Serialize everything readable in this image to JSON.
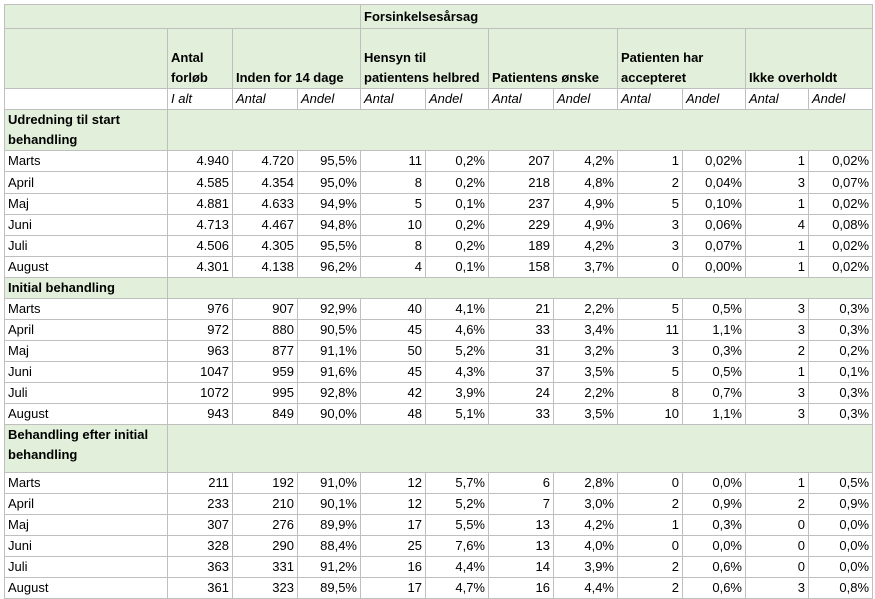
{
  "header": {
    "group_title": "Forsinkelsesårsag",
    "columns": [
      "Antal forløb",
      "Inden for 14 dage",
      "Hensyn til patientens helbred",
      "Patientens ønske",
      "Patienten har accepteret",
      "Ikke overholdt"
    ],
    "subheaders": [
      "I alt",
      "Antal",
      "Andel",
      "Antal",
      "Andel",
      "Antal",
      "Andel",
      "Antal",
      "Andel",
      "Antal",
      "Andel"
    ]
  },
  "sections": [
    {
      "title": "Udredning til start behandling",
      "rows": [
        [
          "Marts",
          "4.940",
          "4.720",
          "95,5%",
          "11",
          "0,2%",
          "207",
          "4,2%",
          "1",
          "0,02%",
          "1",
          "0,02%"
        ],
        [
          "April",
          "4.585",
          "4.354",
          "95,0%",
          "8",
          "0,2%",
          "218",
          "4,8%",
          "2",
          "0,04%",
          "3",
          "0,07%"
        ],
        [
          "Maj",
          "4.881",
          "4.633",
          "94,9%",
          "5",
          "0,1%",
          "237",
          "4,9%",
          "5",
          "0,10%",
          "1",
          "0,02%"
        ],
        [
          "Juni",
          "4.713",
          "4.467",
          "94,8%",
          "10",
          "0,2%",
          "229",
          "4,9%",
          "3",
          "0,06%",
          "4",
          "0,08%"
        ],
        [
          "Juli",
          "4.506",
          "4.305",
          "95,5%",
          "8",
          "0,2%",
          "189",
          "4,2%",
          "3",
          "0,07%",
          "1",
          "0,02%"
        ],
        [
          "August",
          "4.301",
          "4.138",
          "96,2%",
          "4",
          "0,1%",
          "158",
          "3,7%",
          "0",
          "0,00%",
          "1",
          "0,02%"
        ]
      ]
    },
    {
      "title": "Initial behandling",
      "rows": [
        [
          "Marts",
          "976",
          "907",
          "92,9%",
          "40",
          "4,1%",
          "21",
          "2,2%",
          "5",
          "0,5%",
          "3",
          "0,3%"
        ],
        [
          "April",
          "972",
          "880",
          "90,5%",
          "45",
          "4,6%",
          "33",
          "3,4%",
          "11",
          "1,1%",
          "3",
          "0,3%"
        ],
        [
          "Maj",
          "963",
          "877",
          "91,1%",
          "50",
          "5,2%",
          "31",
          "3,2%",
          "3",
          "0,3%",
          "2",
          "0,2%"
        ],
        [
          "Juni",
          "1047",
          "959",
          "91,6%",
          "45",
          "4,3%",
          "37",
          "3,5%",
          "5",
          "0,5%",
          "1",
          "0,1%"
        ],
        [
          "Juli",
          "1072",
          "995",
          "92,8%",
          "42",
          "3,9%",
          "24",
          "2,2%",
          "8",
          "0,7%",
          "3",
          "0,3%"
        ],
        [
          "August",
          "943",
          "849",
          "90,0%",
          "48",
          "5,1%",
          "33",
          "3,5%",
          "10",
          "1,1%",
          "3",
          "0,3%"
        ]
      ]
    },
    {
      "title": "Behandling efter initial behandling",
      "rows": [
        [
          "Marts",
          "211",
          "192",
          "91,0%",
          "12",
          "5,7%",
          "6",
          "2,8%",
          "0",
          "0,0%",
          "1",
          "0,5%"
        ],
        [
          "April",
          "233",
          "210",
          "90,1%",
          "12",
          "5,2%",
          "7",
          "3,0%",
          "2",
          "0,9%",
          "2",
          "0,9%"
        ],
        [
          "Maj",
          "307",
          "276",
          "89,9%",
          "17",
          "5,5%",
          "13",
          "4,2%",
          "1",
          "0,3%",
          "0",
          "0,0%"
        ],
        [
          "Juni",
          "328",
          "290",
          "88,4%",
          "25",
          "7,6%",
          "13",
          "4,0%",
          "0",
          "0,0%",
          "0",
          "0,0%"
        ],
        [
          "Juli",
          "363",
          "331",
          "91,2%",
          "16",
          "4,4%",
          "14",
          "3,9%",
          "2",
          "0,6%",
          "0",
          "0,0%"
        ],
        [
          "August",
          "361",
          "323",
          "89,5%",
          "17",
          "4,7%",
          "16",
          "4,4%",
          "2",
          "0,6%",
          "3",
          "0,8%"
        ]
      ]
    }
  ]
}
